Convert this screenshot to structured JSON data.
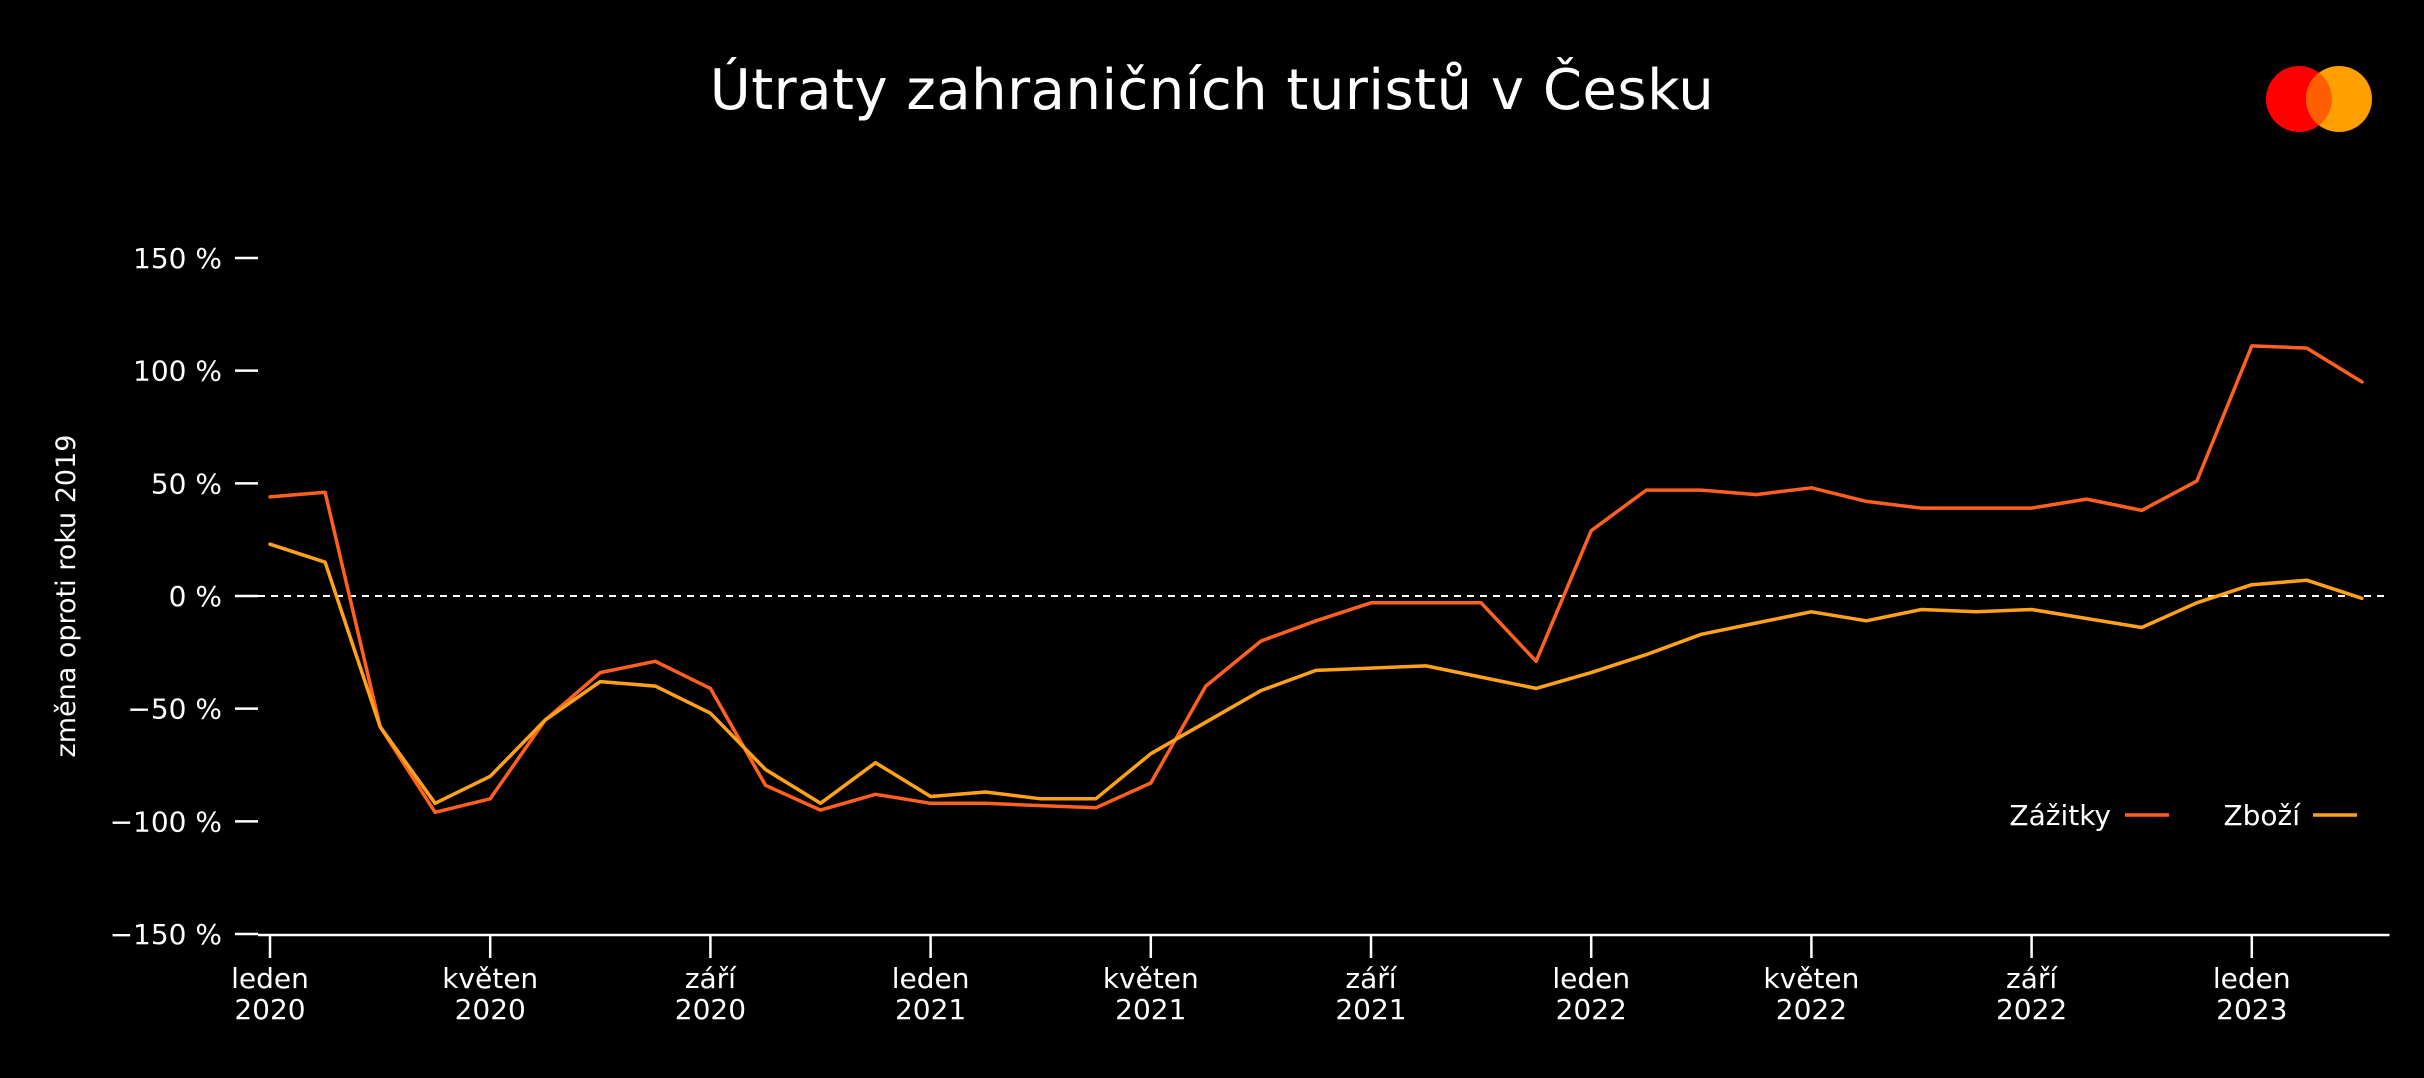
{
  "chart_data": {
    "type": "line",
    "title": "Útraty zahraničních turistů v Česku",
    "ylabel": "změna oproti roku 2019",
    "ylim": [
      -150,
      150
    ],
    "yticks": [
      150,
      100,
      50,
      0,
      -50,
      -100,
      -150
    ],
    "ytick_labels": [
      "150 %",
      "100 %",
      "50 %",
      "0 %",
      "−50 %",
      "−100 %",
      "−150 %"
    ],
    "x_range": [
      0,
      38.5
    ],
    "x_ticks": [
      {
        "x": 0,
        "label1": "leden",
        "label2": "2020"
      },
      {
        "x": 4,
        "label1": "květen",
        "label2": "2020"
      },
      {
        "x": 8,
        "label1": "září",
        "label2": "2020"
      },
      {
        "x": 12,
        "label1": "leden",
        "label2": "2021"
      },
      {
        "x": 16,
        "label1": "květen",
        "label2": "2021"
      },
      {
        "x": 20,
        "label1": "září",
        "label2": "2021"
      },
      {
        "x": 24,
        "label1": "leden",
        "label2": "2022"
      },
      {
        "x": 28,
        "label1": "květen",
        "label2": "2022"
      },
      {
        "x": 32,
        "label1": "září",
        "label2": "2022"
      },
      {
        "x": 36,
        "label1": "leden",
        "label2": "2023"
      }
    ],
    "reference_line": 0,
    "legend_position": "bottom-right",
    "series": [
      {
        "name": "Zážitky",
        "color": "#ff5f1f",
        "x": [
          0,
          1,
          2,
          3,
          4,
          5,
          6,
          7,
          8,
          9,
          10,
          11,
          12,
          13,
          14,
          15,
          16,
          17,
          18,
          19,
          20,
          21,
          22,
          23,
          24,
          25,
          26,
          27,
          28,
          29,
          30,
          31,
          32,
          33,
          34,
          35,
          36,
          37,
          38
        ],
        "values": [
          44,
          46,
          -58,
          -96,
          -90,
          -55,
          -34,
          -29,
          -41,
          -84,
          -95,
          -88,
          -92,
          -92,
          -93,
          -94,
          -83,
          -40,
          -20,
          -11,
          -3,
          -3,
          -3,
          -29,
          29,
          47,
          47,
          45,
          48,
          42,
          39,
          39,
          39,
          43,
          38,
          51,
          111,
          110,
          95
        ]
      },
      {
        "name": "Zboží",
        "color": "#ffa21a",
        "x": [
          0,
          1,
          2,
          3,
          4,
          5,
          6,
          7,
          8,
          9,
          10,
          11,
          12,
          13,
          14,
          15,
          16,
          17,
          18,
          19,
          20,
          21,
          22,
          23,
          24,
          25,
          26,
          27,
          28,
          29,
          30,
          31,
          32,
          33,
          34,
          35,
          36,
          37,
          38
        ],
        "values": [
          23,
          15,
          -58,
          -92,
          -80,
          -55,
          -38,
          -40,
          -52,
          -77,
          -92,
          -74,
          -89,
          -87,
          -90,
          -90,
          -70,
          -56,
          -42,
          -33,
          -32,
          -31,
          -36,
          -41,
          -34,
          -26,
          -17,
          -12,
          -7,
          -11,
          -6,
          -7,
          -6,
          -10,
          -14,
          -3,
          5,
          7,
          -1
        ]
      }
    ]
  },
  "logo": {
    "name": "mastercard-logo",
    "color_left": "#ff0000",
    "color_right": "#ff9f00",
    "color_overlap": "#ff5f00"
  }
}
